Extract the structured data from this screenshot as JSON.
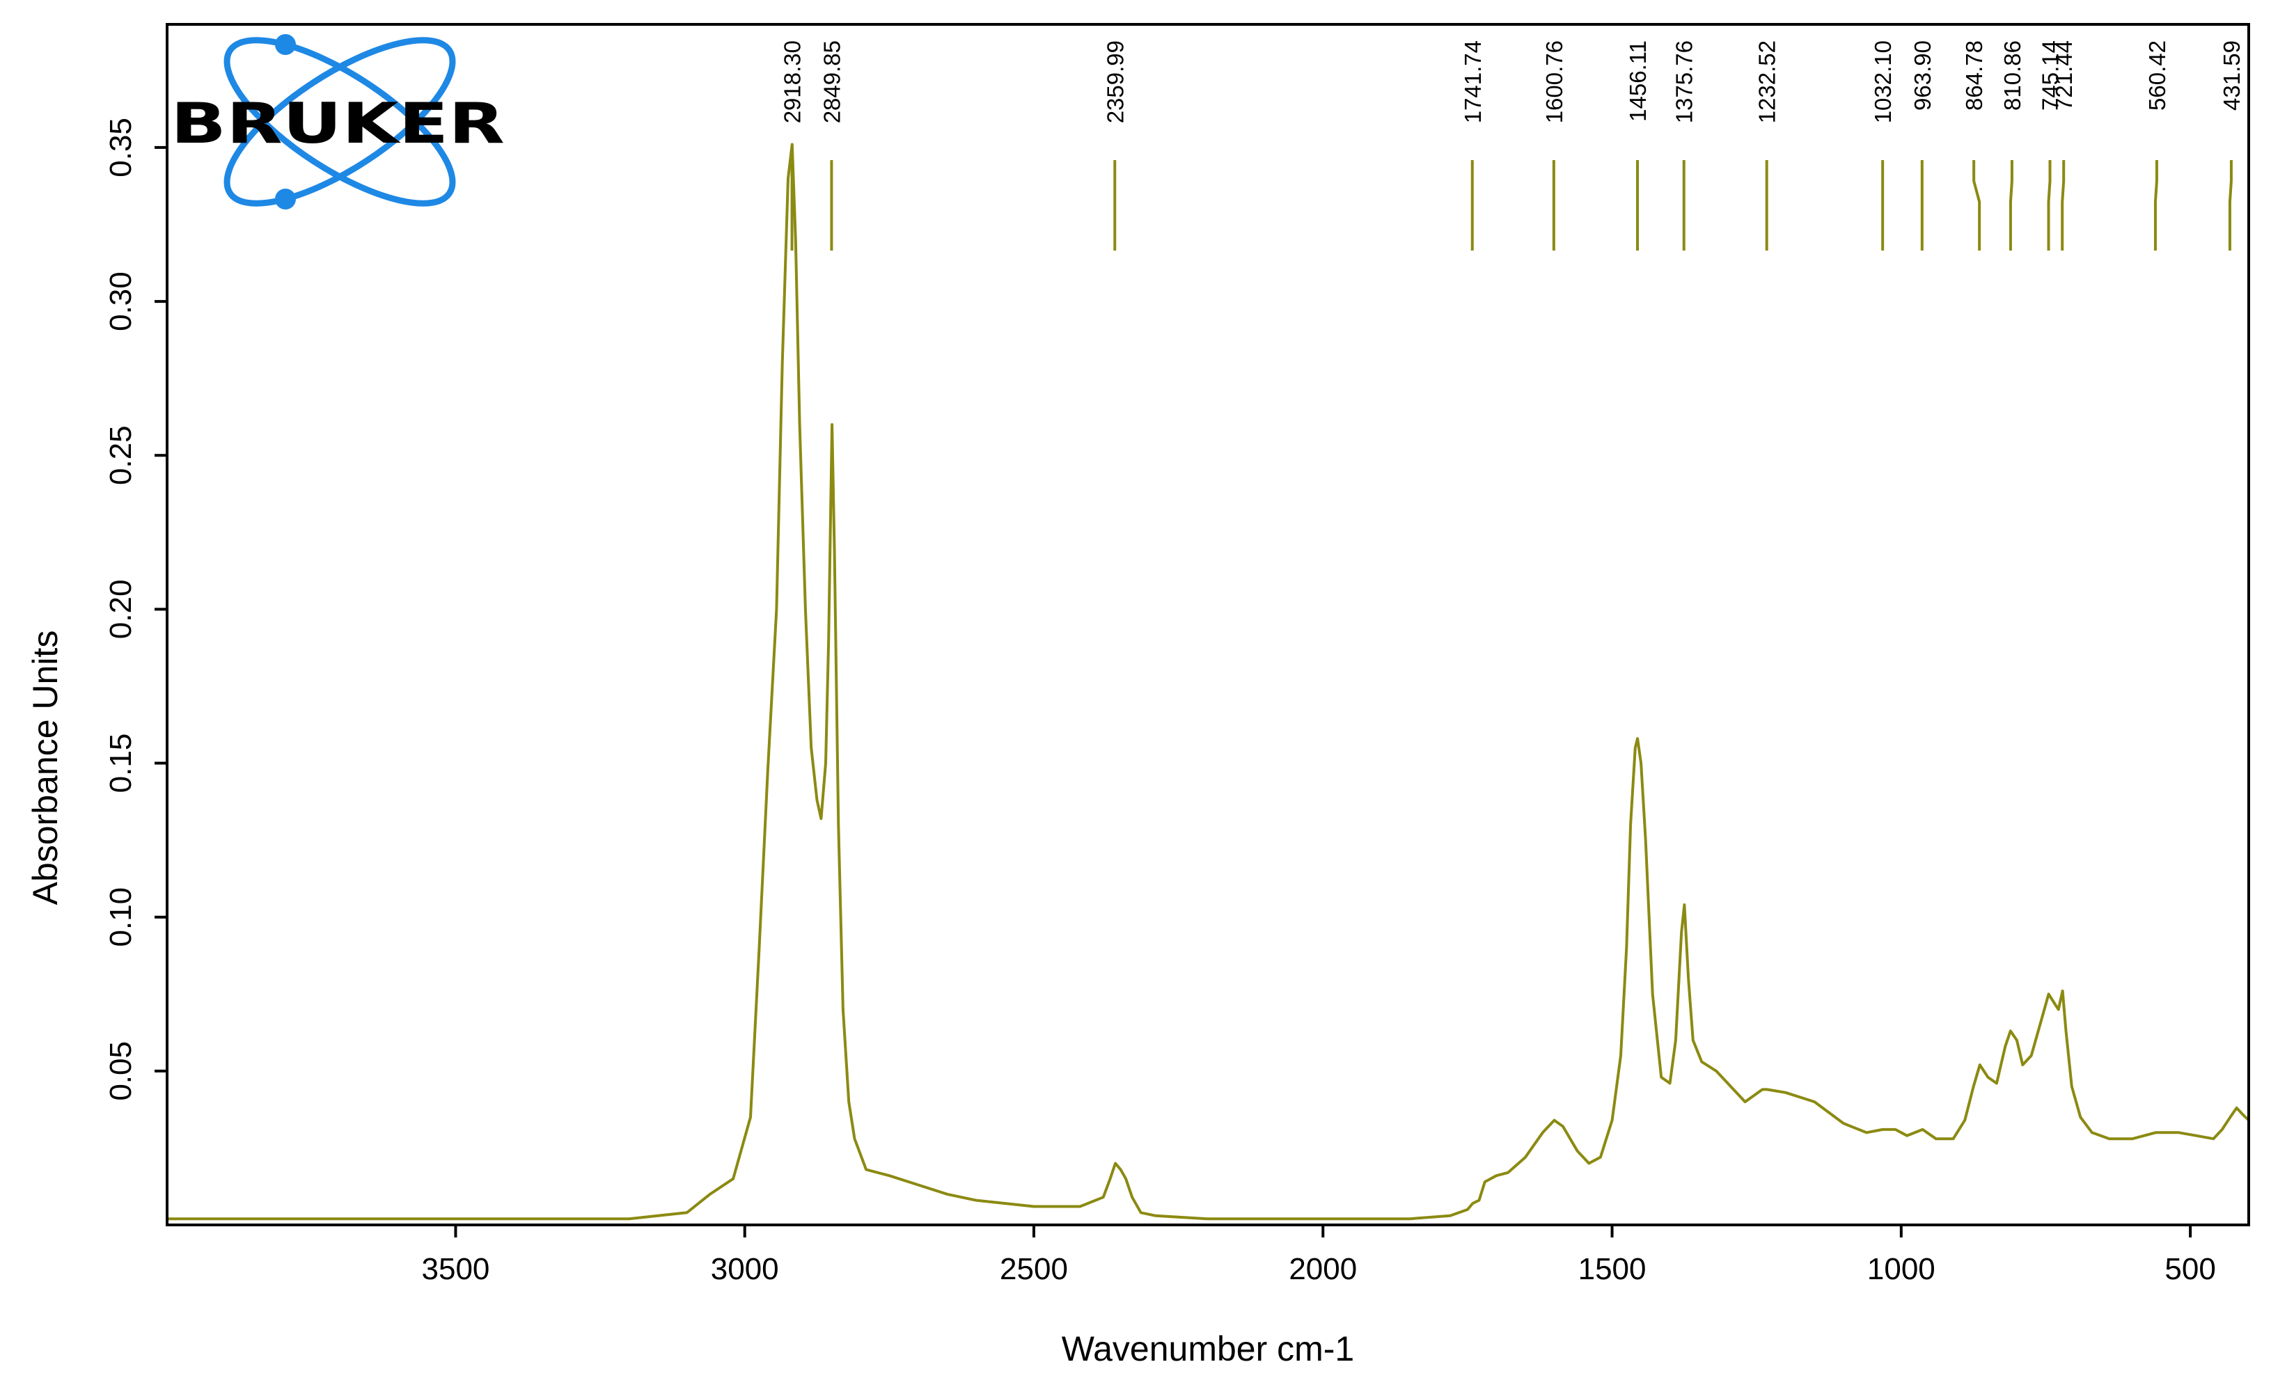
{
  "logo": {
    "text": "BRUKER",
    "color": "#1e88e5"
  },
  "colors": {
    "spectrum": "#8b8a12",
    "peak_marker": "#8b8a12",
    "frame": "#000000"
  },
  "chart_data": {
    "type": "line",
    "title": "",
    "xlabel": "Wavenumber cm-1",
    "ylabel": "Absorbance Units",
    "xlim": [
      3999,
      399
    ],
    "ylim": [
      0.0,
      0.39
    ],
    "x_reversed": true,
    "grid": false,
    "legend": "none",
    "x_ticks": [
      3500,
      3000,
      2500,
      2000,
      1500,
      1000,
      500
    ],
    "y_ticks": [
      0.05,
      0.1,
      0.15,
      0.2,
      0.25,
      0.3,
      0.35
    ],
    "y_tick_labels": [
      "0.05",
      "0.10",
      "0.15",
      "0.20",
      "0.25",
      "0.30",
      "0.35"
    ],
    "peak_labels": [
      "2918.30",
      "2849.85",
      "2359.99",
      "1741.74",
      "1600.76",
      "1456.11",
      "1375.76",
      "1232.52",
      "1032.10",
      "963.90",
      "864.78",
      "810.86",
      "745.14",
      "721.44",
      "560.42",
      "431.59"
    ],
    "peak_positions": [
      2918.3,
      2849.85,
      2359.99,
      1741.74,
      1600.76,
      1456.11,
      1375.76,
      1232.52,
      1032.1,
      963.9,
      864.78,
      810.86,
      745.14,
      721.44,
      560.42,
      431.59
    ],
    "series": [
      {
        "x": [
          3999,
          3800,
          3500,
          3200,
          3100,
          3060,
          3020,
          2990,
          2975,
          2960,
          2945,
          2935,
          2925,
          2918,
          2912,
          2905,
          2895,
          2885,
          2875,
          2868,
          2860,
          2855,
          2849,
          2845,
          2838,
          2830,
          2820,
          2810,
          2790,
          2750,
          2700,
          2650,
          2600,
          2500,
          2420,
          2380,
          2368,
          2359,
          2350,
          2341,
          2330,
          2315,
          2290,
          2200,
          2000,
          1850,
          1780,
          1750,
          1741,
          1730,
          1720,
          1700,
          1680,
          1650,
          1620,
          1600,
          1585,
          1560,
          1540,
          1520,
          1500,
          1485,
          1475,
          1468,
          1460,
          1456,
          1450,
          1442,
          1430,
          1415,
          1400,
          1390,
          1380,
          1375,
          1368,
          1360,
          1345,
          1320,
          1300,
          1270,
          1240,
          1232,
          1200,
          1150,
          1100,
          1060,
          1032,
          1010,
          990,
          963,
          940,
          910,
          890,
          875,
          864,
          850,
          835,
          820,
          811,
          800,
          790,
          775,
          760,
          745,
          735,
          728,
          721,
          715,
          705,
          690,
          670,
          640,
          600,
          560,
          520,
          490,
          460,
          445,
          431,
          420,
          410,
          399
        ],
        "y": [
          0.002,
          0.002,
          0.002,
          0.002,
          0.004,
          0.01,
          0.015,
          0.035,
          0.09,
          0.148,
          0.2,
          0.28,
          0.34,
          0.351,
          0.32,
          0.26,
          0.2,
          0.155,
          0.138,
          0.132,
          0.15,
          0.19,
          0.26,
          0.22,
          0.13,
          0.07,
          0.04,
          0.028,
          0.018,
          0.016,
          0.013,
          0.01,
          0.008,
          0.006,
          0.006,
          0.009,
          0.015,
          0.02,
          0.018,
          0.015,
          0.009,
          0.004,
          0.003,
          0.002,
          0.002,
          0.002,
          0.003,
          0.005,
          0.007,
          0.008,
          0.014,
          0.016,
          0.017,
          0.022,
          0.03,
          0.034,
          0.032,
          0.024,
          0.02,
          0.022,
          0.034,
          0.055,
          0.09,
          0.13,
          0.155,
          0.158,
          0.15,
          0.125,
          0.075,
          0.048,
          0.046,
          0.06,
          0.095,
          0.104,
          0.08,
          0.06,
          0.053,
          0.05,
          0.046,
          0.04,
          0.044,
          0.044,
          0.043,
          0.04,
          0.033,
          0.03,
          0.031,
          0.031,
          0.029,
          0.031,
          0.028,
          0.028,
          0.034,
          0.045,
          0.052,
          0.048,
          0.046,
          0.058,
          0.063,
          0.06,
          0.052,
          0.055,
          0.065,
          0.075,
          0.072,
          0.07,
          0.076,
          0.063,
          0.045,
          0.035,
          0.03,
          0.028,
          0.028,
          0.03,
          0.03,
          0.029,
          0.028,
          0.031,
          0.035,
          0.038,
          0.036,
          0.034
        ]
      }
    ]
  }
}
